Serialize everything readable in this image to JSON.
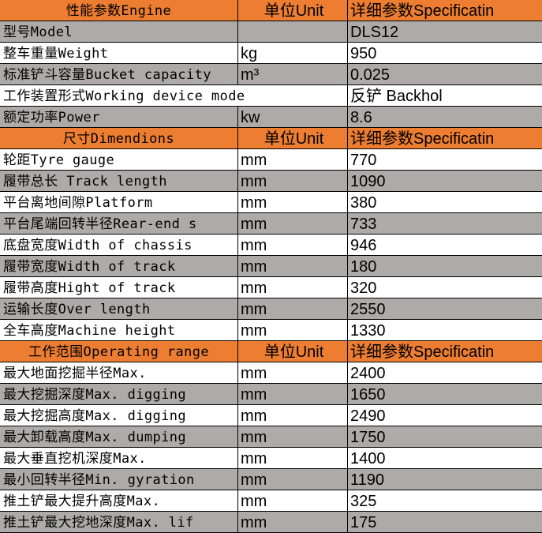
{
  "colors": {
    "header": "#ED7D31",
    "shaded": "#AEAAAA",
    "plain": "#FFFFFF"
  },
  "rows": [
    {
      "style": "orange",
      "name": "性能参数Engine",
      "unit": "单位Unit",
      "spec": "详细参数Specificatin"
    },
    {
      "style": "gray",
      "name": "型号Model",
      "unit": "",
      "spec": "DLS12"
    },
    {
      "style": "white",
      "name": "整车重量Weight",
      "unit": "kg",
      "spec": "950"
    },
    {
      "style": "gray",
      "name": "标准铲斗容量Bucket capacity",
      "unit": "m³",
      "spec": "0.025"
    },
    {
      "style": "white span",
      "name": "工作装置形式Working device mode",
      "unit": "",
      "spec": "反铲 Backhol"
    },
    {
      "style": "gray",
      "name": "额定功率Power",
      "unit": "kw",
      "spec": "8.6"
    },
    {
      "style": "orange",
      "name": "尺寸Dimendions",
      "unit": "单位Unit",
      "spec": "详细参数Specificatin"
    },
    {
      "style": "white",
      "name": "轮距Tyre gauge",
      "unit": "mm",
      "spec": "770"
    },
    {
      "style": "gray",
      "name": "履带总长 Track length",
      "unit": "mm",
      "spec": "1090"
    },
    {
      "style": "white",
      "name": "平台离地间隙Platform",
      "unit": "mm",
      "spec": "380"
    },
    {
      "style": "gray",
      "name": "平台尾端回转半径Rear-end s",
      "unit": "mm",
      "spec": "733"
    },
    {
      "style": "white",
      "name": "底盘宽度Width of chassis",
      "unit": "mm",
      "spec": "946"
    },
    {
      "style": "gray",
      "name": "履带宽度Width of track",
      "unit": "mm",
      "spec": "180"
    },
    {
      "style": "white",
      "name": "履带高度Hight of track",
      "unit": "mm",
      "spec": "320"
    },
    {
      "style": "gray",
      "name": "运输长度Over length",
      "unit": "mm",
      "spec": "2550"
    },
    {
      "style": "white",
      "name": "全车高度Machine height",
      "unit": "mm",
      "spec": "1330"
    },
    {
      "style": "orange",
      "name": "工作范围Operating range",
      "unit": "单位Unit",
      "spec": "详细参数Specificatin"
    },
    {
      "style": "white",
      "name": "最大地面挖掘半径Max.",
      "unit": "mm",
      "spec": "2400"
    },
    {
      "style": "gray",
      "name": "最大挖掘深度Max. digging",
      "unit": "mm",
      "spec": "1650"
    },
    {
      "style": "white",
      "name": "最大挖掘高度Max. digging",
      "unit": "mm",
      "spec": "2490"
    },
    {
      "style": "gray",
      "name": "最大卸载高度Max. dumping",
      "unit": "mm",
      "spec": "1750"
    },
    {
      "style": "white",
      "name": "最大垂直挖机深度Max.",
      "unit": "mm",
      "spec": "1400"
    },
    {
      "style": "gray",
      "name": "最小回转半径Min. gyration",
      "unit": "mm",
      "spec": "1190"
    },
    {
      "style": "white",
      "name": "推土铲最大提升高度Max.",
      "unit": "mm",
      "spec": "325"
    },
    {
      "style": "gray",
      "name": "推土铲最大挖地深度Max. lif",
      "unit": "mm",
      "spec": "175"
    }
  ]
}
